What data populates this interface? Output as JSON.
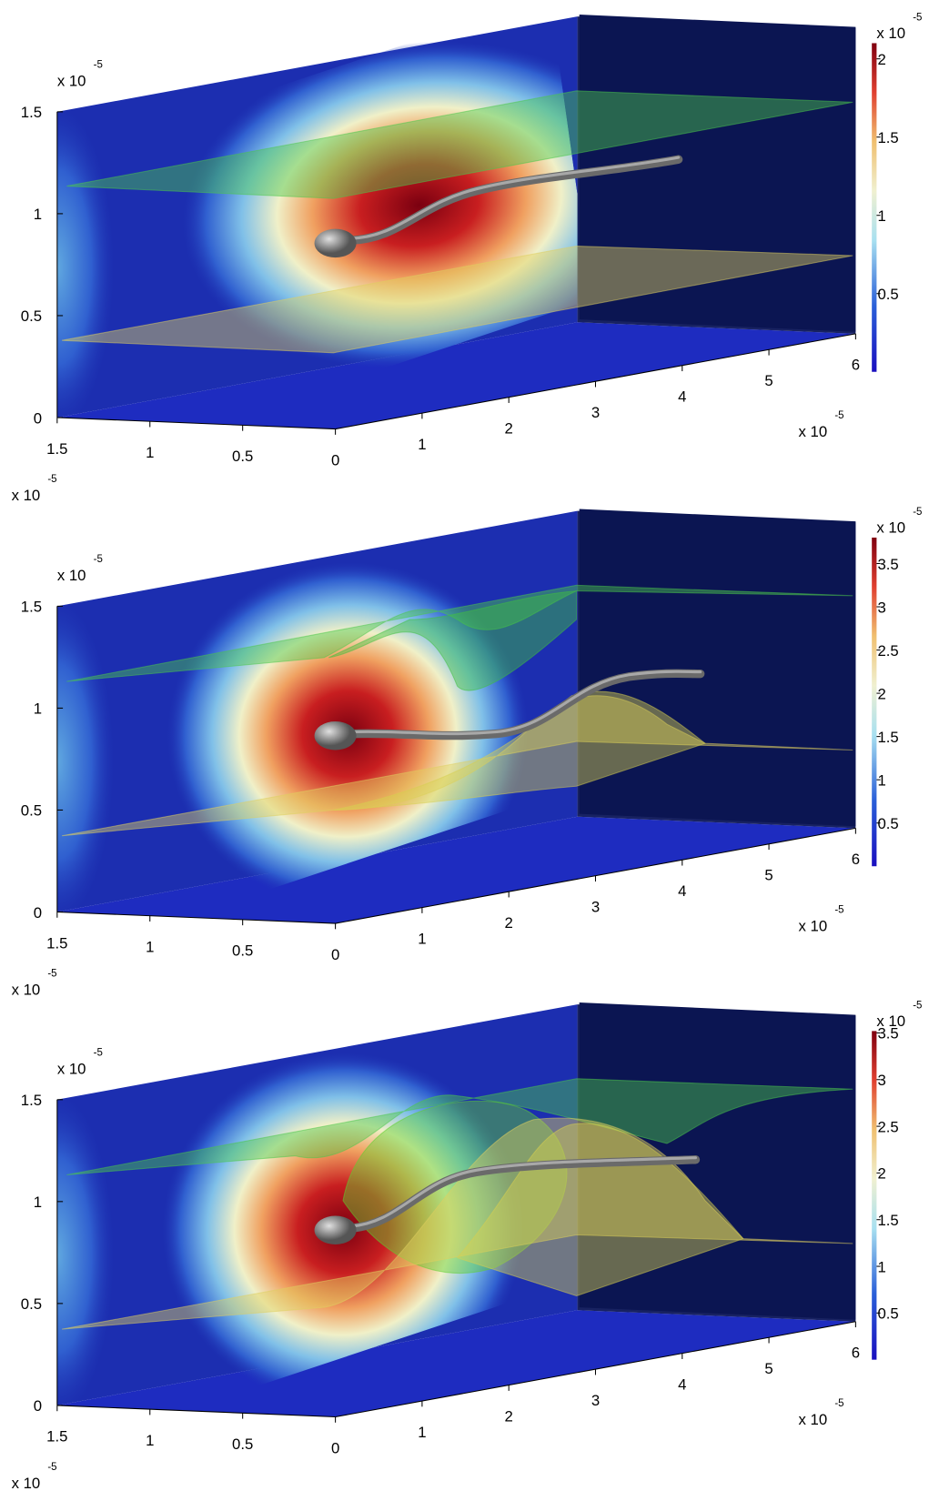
{
  "chart_data": [
    {
      "type": "surface3d",
      "xlim": [
        0,
        6
      ],
      "xticks": [
        1,
        2,
        3,
        4,
        5,
        6
      ],
      "x_scale": {
        "base": "x 10",
        "exponent": "-5"
      },
      "ylim": [
        0,
        1.5
      ],
      "yticks": [
        1.5,
        1,
        0.5,
        0
      ],
      "y_scale": {
        "base": "x 10",
        "exponent": "-5"
      },
      "zlim": [
        0,
        1.5
      ],
      "zticks": [
        0,
        0.5,
        1,
        1.5
      ],
      "z_scale": {
        "base": "x 10",
        "exponent": "-5"
      },
      "colorbar": {
        "clim": [
          0,
          2.1
        ],
        "ticks": [
          0.5,
          1,
          1.5,
          2
        ],
        "scale": {
          "base": "x 10",
          "exponent": "-5"
        }
      }
    },
    {
      "type": "surface3d",
      "xlim": [
        0,
        6
      ],
      "xticks": [
        1,
        2,
        3,
        4,
        5,
        6
      ],
      "x_scale": {
        "base": "x 10",
        "exponent": "-5"
      },
      "ylim": [
        0,
        1.5
      ],
      "yticks": [
        1.5,
        1,
        0.5,
        0
      ],
      "y_scale": {
        "base": "x 10",
        "exponent": "-5"
      },
      "zlim": [
        0,
        1.5
      ],
      "zticks": [
        0,
        0.5,
        1,
        1.5
      ],
      "z_scale": {
        "base": "x 10",
        "exponent": "-5"
      },
      "colorbar": {
        "clim": [
          0,
          3.8
        ],
        "ticks": [
          0.5,
          1,
          1.5,
          2,
          2.5,
          3,
          3.5
        ],
        "scale": {
          "base": "x 10",
          "exponent": "-5"
        }
      }
    },
    {
      "type": "surface3d",
      "xlim": [
        0,
        6
      ],
      "xticks": [
        1,
        2,
        3,
        4,
        5,
        6
      ],
      "x_scale": {
        "base": "x 10",
        "exponent": "-5"
      },
      "ylim": [
        0,
        1.5
      ],
      "yticks": [
        1.5,
        1,
        0.5,
        0
      ],
      "y_scale": {
        "base": "x 10",
        "exponent": "-5"
      },
      "zlim": [
        0,
        1.5
      ],
      "zticks": [
        0,
        0.5,
        1,
        1.5
      ],
      "z_scale": {
        "base": "x 10",
        "exponent": "-5"
      },
      "colorbar": {
        "clim": [
          0,
          3.52
        ],
        "ticks": [
          0.5,
          1,
          1.5,
          2,
          2.5,
          3,
          3.5
        ],
        "scale": {
          "base": "x 10",
          "exponent": "-5"
        }
      }
    }
  ]
}
